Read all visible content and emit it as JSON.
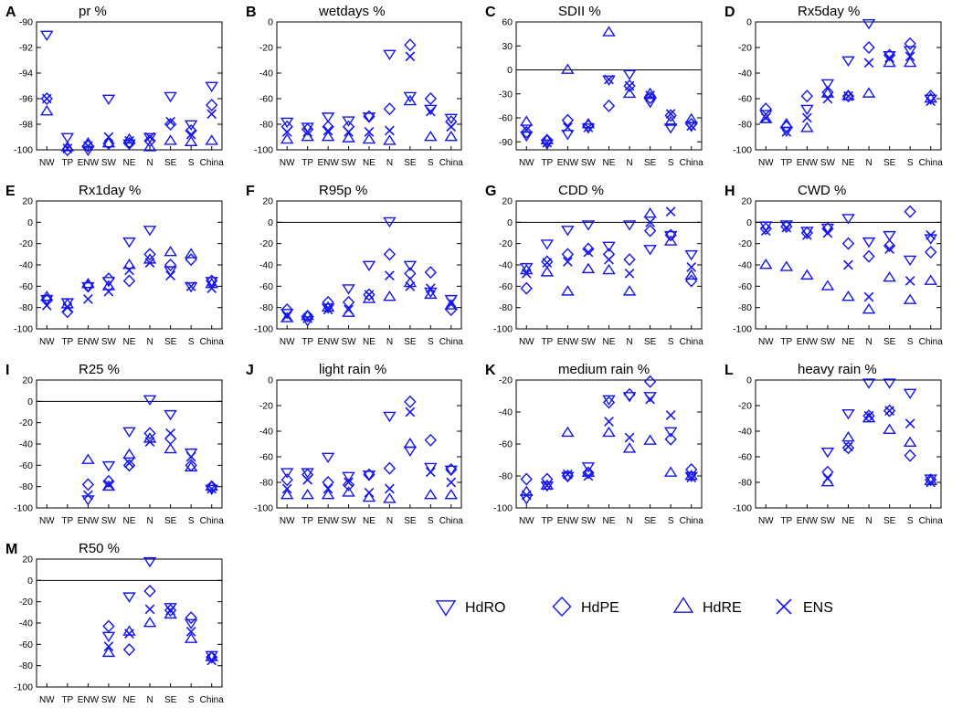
{
  "regions": [
    "NW",
    "TP",
    "ENW",
    "SW",
    "NE",
    "N",
    "SE",
    "S",
    "China"
  ],
  "marker_color": "#1515ee",
  "legend": [
    {
      "name": "HdRO",
      "symbol": "down-triangle-icon"
    },
    {
      "name": "HdPE",
      "symbol": "diamond-icon"
    },
    {
      "name": "HdRE",
      "symbol": "up-triangle-icon"
    },
    {
      "name": "ENS",
      "symbol": "x-icon"
    }
  ],
  "chart_data": [
    {
      "type": "scatter",
      "panel": "A",
      "title": "pr %",
      "ylim": [
        -100,
        -90
      ],
      "yticks": [
        -90,
        -92,
        -94,
        -96,
        -98,
        -100
      ],
      "zero_line": false,
      "series": {
        "HdRO": [
          -91,
          -99,
          -100,
          -96,
          -99.5,
          -99,
          -95.8,
          -98,
          -95
        ],
        "HdPE": [
          -96,
          -100,
          -99.7,
          -99.5,
          -99.5,
          -99.3,
          -98,
          -98.5,
          -96.5
        ],
        "HdRE": [
          -97,
          -99.8,
          -99.5,
          -99.5,
          -99.2,
          -99.8,
          -99.3,
          -99.4,
          -99.3
        ],
        "ENS": [
          -96,
          -99.9,
          -99.7,
          -99,
          -99.3,
          -99,
          -97.8,
          -98.8,
          -97.2
        ]
      }
    },
    {
      "type": "scatter",
      "panel": "B",
      "title": "wetdays %",
      "ylim": [
        -100,
        0
      ],
      "yticks": [
        0,
        -20,
        -40,
        -60,
        -80,
        -100
      ],
      "zero_line": false,
      "series": {
        "HdRO": [
          -78,
          -82,
          -74,
          -77,
          -74,
          -25,
          -58,
          -68,
          -75
        ],
        "HdPE": [
          -82,
          -84,
          -82,
          -82,
          -74,
          -68,
          -18,
          -60,
          -78
        ],
        "HdRE": [
          -92,
          -90,
          -90,
          -91,
          -92,
          -93,
          -62,
          -90,
          -90
        ],
        "ENS": [
          -86,
          -86,
          -85,
          -86,
          -86,
          -85,
          -27,
          -70,
          -82
        ]
      }
    },
    {
      "type": "scatter",
      "panel": "C",
      "title": "SDII %",
      "ylim": [
        -100,
        60
      ],
      "yticks": [
        60,
        30,
        0,
        -30,
        -60,
        -90
      ],
      "zero_line": true,
      "series": {
        "HdRO": [
          -82,
          -92,
          -80,
          -72,
          -12,
          -5,
          -40,
          -72,
          -70
        ],
        "HdPE": [
          -78,
          -88,
          -63,
          -70,
          -45,
          -20,
          -35,
          -57,
          -68
        ],
        "HdRE": [
          -65,
          -88,
          0,
          -68,
          47,
          -30,
          -30,
          -65,
          -62
        ],
        "ENS": [
          -75,
          -91,
          -72,
          -72,
          -12,
          -20,
          -32,
          -55,
          -70
        ]
      }
    },
    {
      "type": "scatter",
      "panel": "D",
      "title": "Rx5day %",
      "ylim": [
        -100,
        0
      ],
      "yticks": [
        0,
        -20,
        -40,
        -60,
        -80,
        -100
      ],
      "zero_line": false,
      "series": {
        "HdRO": [
          -72,
          -85,
          -68,
          -48,
          -30,
          -1,
          -26,
          -22,
          -60
        ],
        "HdPE": [
          -68,
          -82,
          -58,
          -55,
          -58,
          -20,
          -26,
          -17,
          -58
        ],
        "HdRE": [
          -76,
          -80,
          -83,
          -56,
          -58,
          -56,
          -32,
          -32,
          -60
        ],
        "ENS": [
          -75,
          -86,
          -75,
          -60,
          -58,
          -32,
          -28,
          -27,
          -62
        ]
      }
    },
    {
      "type": "scatter",
      "panel": "E",
      "title": "Rx1day %",
      "ylim": [
        -100,
        20
      ],
      "yticks": [
        20,
        0,
        -20,
        -40,
        -60,
        -80,
        -100
      ],
      "zero_line": false,
      "series": {
        "HdRO": [
          -72,
          -75,
          -60,
          -55,
          -18,
          -7,
          -45,
          -60,
          -55
        ],
        "HdPE": [
          -73,
          -84,
          -60,
          -53,
          -55,
          -30,
          -40,
          -35,
          -55
        ],
        "HdRE": [
          -70,
          -77,
          -58,
          -60,
          -40,
          -35,
          -28,
          -30,
          -58
        ],
        "ENS": [
          -78,
          -80,
          -72,
          -65,
          -45,
          -38,
          -50,
          -60,
          -62
        ]
      }
    },
    {
      "type": "scatter",
      "panel": "F",
      "title": "R95p %",
      "ylim": [
        -100,
        20
      ],
      "yticks": [
        20,
        0,
        -20,
        -40,
        -60,
        -80,
        -100
      ],
      "zero_line": true,
      "series": {
        "HdRO": [
          -85,
          -92,
          -80,
          -62,
          -40,
          1,
          -40,
          -65,
          -72
        ],
        "HdPE": [
          -82,
          -88,
          -75,
          -75,
          -68,
          -30,
          -48,
          -47,
          -82
        ],
        "HdRE": [
          -90,
          -88,
          -80,
          -85,
          -72,
          -70,
          -57,
          -68,
          -78
        ],
        "ENS": [
          -88,
          -90,
          -82,
          -82,
          -68,
          -50,
          -60,
          -62,
          -75
        ]
      }
    },
    {
      "type": "scatter",
      "panel": "G",
      "title": "CDD %",
      "ylim": [
        -100,
        20
      ],
      "yticks": [
        20,
        0,
        -20,
        -40,
        -60,
        -80,
        -100
      ],
      "zero_line": true,
      "series": {
        "HdRO": [
          -42,
          -20,
          -7,
          -2,
          -22,
          -2,
          -25,
          -12,
          -30
        ],
        "HdPE": [
          -62,
          -37,
          -30,
          -25,
          -30,
          -35,
          -8,
          -12,
          -55
        ],
        "HdRE": [
          -45,
          -47,
          -65,
          -44,
          -45,
          -65,
          8,
          -18,
          -50
        ],
        "ENS": [
          -48,
          -38,
          -37,
          -28,
          -35,
          -48,
          0,
          10,
          -42
        ]
      }
    },
    {
      "type": "scatter",
      "panel": "H",
      "title": "CWD %",
      "ylim": [
        -100,
        20
      ],
      "yticks": [
        20,
        0,
        -20,
        -40,
        -60,
        -80,
        -100
      ],
      "zero_line": true,
      "series": {
        "HdRO": [
          -3,
          -2,
          -8,
          -5,
          4,
          -18,
          -12,
          -35,
          -15
        ],
        "HdPE": [
          -6,
          -4,
          -10,
          -6,
          -20,
          -32,
          -22,
          10,
          -28
        ],
        "HdRE": [
          -40,
          -42,
          -50,
          -60,
          -70,
          -82,
          -52,
          -73,
          -55
        ],
        "ENS": [
          -8,
          -5,
          -12,
          -10,
          -40,
          -70,
          -25,
          -55,
          -12
        ]
      }
    },
    {
      "type": "scatter",
      "panel": "I",
      "title": "R25 %",
      "ylim": [
        -100,
        20
      ],
      "yticks": [
        20,
        0,
        -20,
        -40,
        -60,
        -80,
        -100
      ],
      "zero_line": true,
      "series": {
        "HdRO": [
          null,
          null,
          -92,
          -60,
          -28,
          2,
          -12,
          -48,
          -82
        ],
        "HdPE": [
          null,
          null,
          -78,
          -75,
          -60,
          -30,
          -35,
          -60,
          -80
        ],
        "HdRE": [
          null,
          null,
          -55,
          -80,
          -50,
          -35,
          -45,
          -62,
          -80
        ],
        "ENS": [
          null,
          null,
          -88,
          -78,
          -58,
          -38,
          -30,
          -52,
          -82
        ]
      }
    },
    {
      "type": "scatter",
      "panel": "J",
      "title": "light rain %",
      "ylim": [
        -100,
        0
      ],
      "yticks": [
        0,
        -20,
        -40,
        -60,
        -80,
        -100
      ],
      "zero_line": false,
      "series": {
        "HdRO": [
          -72,
          -72,
          -60,
          -75,
          -74,
          -28,
          -55,
          -68,
          -70
        ],
        "HdPE": [
          -78,
          -74,
          -80,
          -82,
          -74,
          -69,
          -17,
          -47,
          -70
        ],
        "HdRE": [
          -90,
          -90,
          -90,
          -88,
          -92,
          -93,
          -50,
          -90,
          -90
        ],
        "ENS": [
          -85,
          -78,
          -85,
          -80,
          -88,
          -85,
          -25,
          -72,
          -80
        ]
      }
    },
    {
      "type": "scatter",
      "panel": "K",
      "title": "medium rain %",
      "ylim": [
        -100,
        -20
      ],
      "yticks": [
        -20,
        -40,
        -60,
        -80,
        -100
      ],
      "zero_line": false,
      "series": {
        "HdRO": [
          -94,
          -86,
          -80,
          -74,
          -32,
          -30,
          -30,
          -52,
          -80
        ],
        "HdPE": [
          -82,
          -82,
          -80,
          -78,
          -34,
          -29,
          -21,
          -57,
          -76
        ],
        "HdRE": [
          -90,
          -86,
          -53,
          -78,
          -53,
          -63,
          -58,
          -78,
          -80
        ],
        "ENS": [
          -92,
          -86,
          -79,
          -80,
          -46,
          -56,
          -32,
          -42,
          -81
        ]
      }
    },
    {
      "type": "scatter",
      "panel": "L",
      "title": "heavy rain %",
      "ylim": [
        -100,
        0
      ],
      "yticks": [
        0,
        -20,
        -40,
        -60,
        -80,
        -100
      ],
      "zero_line": false,
      "series": {
        "HdRO": [
          null,
          null,
          null,
          -56,
          -26,
          -2,
          -2,
          -10,
          -77
        ],
        "HdPE": [
          null,
          null,
          null,
          -72,
          -53,
          -28,
          -24,
          -59,
          -78
        ],
        "HdRE": [
          null,
          null,
          null,
          -80,
          -45,
          -30,
          -39,
          -49,
          -79
        ],
        "ENS": [
          null,
          null,
          null,
          -77,
          -52,
          -28,
          -24,
          -34,
          -80
        ]
      }
    },
    {
      "type": "scatter",
      "panel": "M",
      "title": "R50 %",
      "ylim": [
        -100,
        20
      ],
      "yticks": [
        20,
        0,
        -20,
        -40,
        -60,
        -80,
        -100
      ],
      "zero_line": true,
      "series": {
        "HdRO": [
          null,
          null,
          null,
          -52,
          -15,
          18,
          -25,
          -40,
          -70
        ],
        "HdPE": [
          null,
          null,
          null,
          -43,
          -65,
          -10,
          -28,
          -35,
          -72
        ],
        "HdRE": [
          null,
          null,
          null,
          -68,
          -48,
          -40,
          -32,
          -55,
          -72
        ],
        "ENS": [
          null,
          null,
          null,
          -62,
          -50,
          -27,
          -28,
          -48,
          -75
        ]
      }
    }
  ]
}
